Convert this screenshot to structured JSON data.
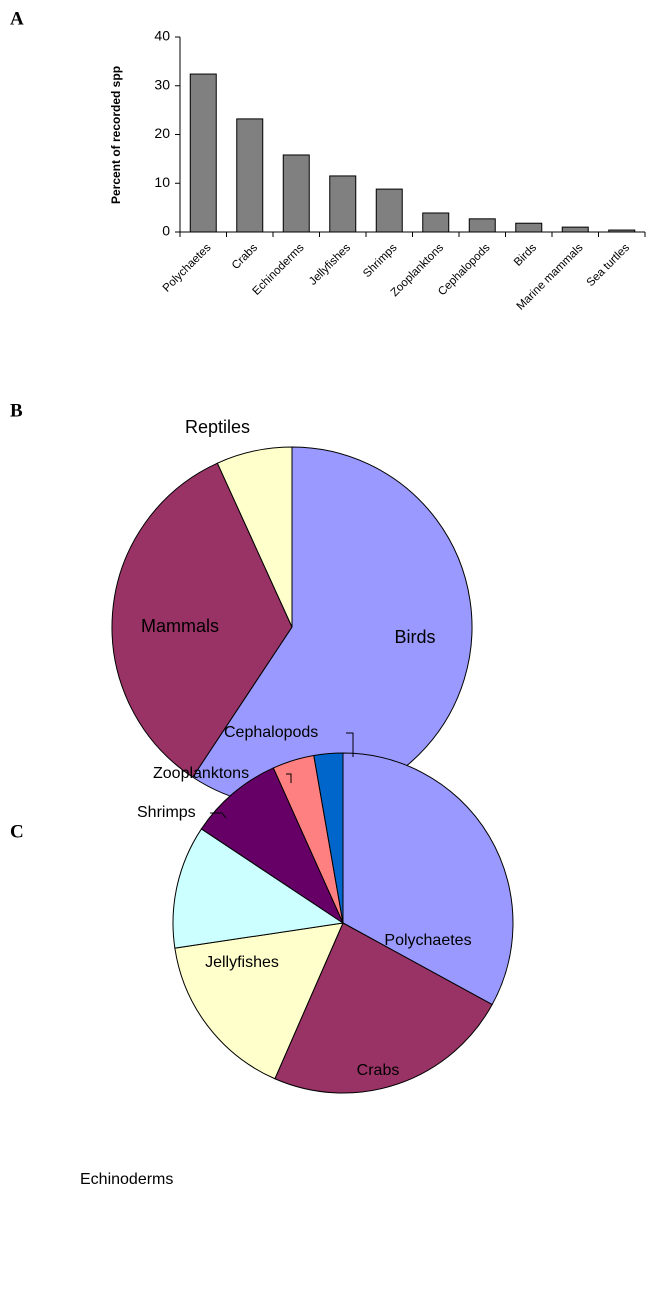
{
  "chart_data": [
    {
      "type": "bar",
      "label": "A",
      "ylabel": "Percent of recorded spp",
      "categories": [
        "Polychaetes",
        "Crabs",
        "Echinoderms",
        "Jellyfishes",
        "Shrimps",
        "Zooplanktons",
        "Cephalopods",
        "Birds",
        "Marine mammals",
        "Sea turtles"
      ],
      "values": [
        32.4,
        23.2,
        15.8,
        11.5,
        8.8,
        3.9,
        2.7,
        1.8,
        1.0,
        0.4
      ],
      "color": "#808080",
      "ylim": [
        0,
        40
      ],
      "yticks": [
        0,
        10,
        20,
        30,
        40
      ]
    },
    {
      "type": "pie",
      "label": "B",
      "categories": [
        "Birds",
        "Mammals",
        "Reptiles"
      ],
      "values": [
        59.3,
        33.9,
        6.8
      ],
      "colors": [
        "#9999ff",
        "#993366",
        "#ffffcc"
      ]
    },
    {
      "type": "pie",
      "label": "C",
      "categories": [
        "Polychaetes",
        "Crabs",
        "Echinoderms",
        "Jellyfishes",
        "Shrimps",
        "Zooplanktons",
        "Cephalopods"
      ],
      "values": [
        32.4,
        23.2,
        15.8,
        11.5,
        8.8,
        3.9,
        2.7
      ],
      "colors": [
        "#9999ff",
        "#993366",
        "#ffffcc",
        "#ccffff",
        "#660066",
        "#ff8080",
        "#0066cc"
      ]
    }
  ]
}
